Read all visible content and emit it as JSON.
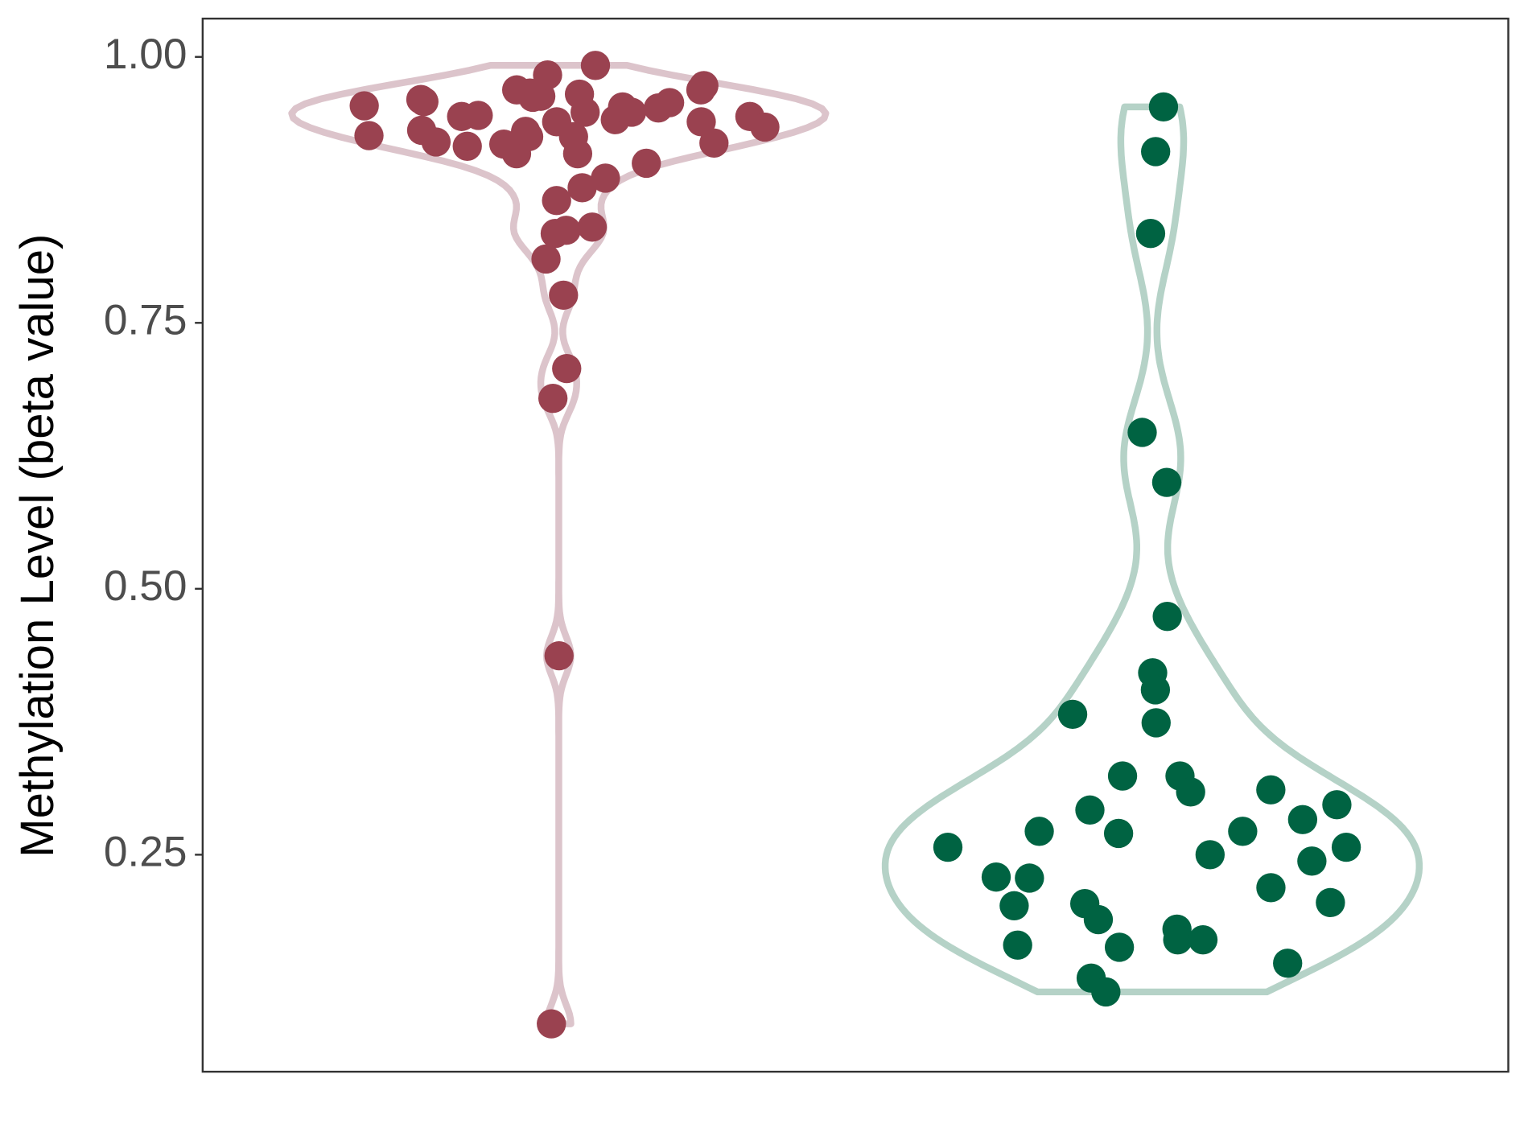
{
  "chart_data": {
    "type": "violin",
    "y_label": "Methylation Level (beta value)",
    "ylim": [
      0.046,
      1.036
    ],
    "yticks": [
      {
        "value": 0.25,
        "label": "0.25"
      },
      {
        "value": 0.5,
        "label": "0.50"
      },
      {
        "value": 0.75,
        "label": "0.75"
      },
      {
        "value": 1,
        "label": "1.00"
      }
    ],
    "grid": false,
    "series": [
      {
        "color": "#9a4250",
        "outline_color": "#dcc4cb",
        "values": [
          0.944,
          0.954,
          0.948,
          0.969,
          0.963,
          0.941,
          0.931,
          0.918,
          0.925,
          0.919,
          0.939,
          0.958,
          0.973,
          0.992,
          0.983,
          0.969,
          0.962,
          0.953,
          0.945,
          0.957,
          0.965,
          0.948,
          0.925,
          0.92,
          0.909,
          0.939,
          0.926,
          0.96,
          0.966,
          0.934,
          0.952,
          0.944,
          0.93,
          0.916,
          0.909,
          0.9,
          0.886,
          0.865,
          0.877,
          0.837,
          0.84,
          0.834,
          0.81,
          0.776,
          0.707,
          0.679,
          0.437,
          0.091
        ]
      },
      {
        "color": "#006342",
        "outline_color": "#b5d2c7",
        "values": [
          0.953,
          0.911,
          0.834,
          0.647,
          0.6,
          0.474,
          0.421,
          0.405,
          0.374,
          0.382,
          0.324,
          0.309,
          0.324,
          0.311,
          0.292,
          0.27,
          0.272,
          0.297,
          0.272,
          0.283,
          0.244,
          0.257,
          0.25,
          0.257,
          0.228,
          0.219,
          0.229,
          0.205,
          0.202,
          0.204,
          0.18,
          0.189,
          0.163,
          0.17,
          0.165,
          0.17,
          0.148,
          0.134,
          0.121
        ]
      }
    ]
  }
}
